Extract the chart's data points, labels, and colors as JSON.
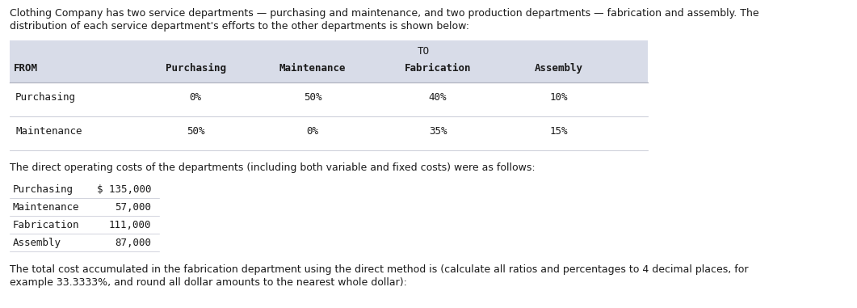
{
  "intro_text_line1": "Clothing Company has two service departments — purchasing and maintenance, and two production departments — fabrication and assembly. The",
  "intro_text_line2": "distribution of each service department's efforts to the other departments is shown below:",
  "table_header_to": "TO",
  "table_col_headers": [
    "FROM",
    "Purchasing",
    "Maintenance",
    "Fabrication",
    "Assembly"
  ],
  "table_rows": [
    [
      "Purchasing",
      "0%",
      "50%",
      "40%",
      "10%"
    ],
    [
      "Maintenance",
      "50%",
      "0%",
      "35%",
      "15%"
    ]
  ],
  "costs_intro": "The direct operating costs of the departments (including both variable and fixed costs) were as follows:",
  "costs_rows": [
    [
      "Purchasing",
      "$ 135,000"
    ],
    [
      "Maintenance",
      "57,000"
    ],
    [
      "Fabrication",
      "111,000"
    ],
    [
      "Assembly",
      "87,000"
    ]
  ],
  "footer_line1": "The total cost accumulated in the fabrication department using the direct method is (calculate all ratios and percentages to 4 decimal places, for",
  "footer_line2": "example 33.3333%, and round all dollar amounts to the nearest whole dollar):",
  "table_bg": "#d8dce8",
  "row_bg_even": "#ffffff",
  "fig_bg": "#ffffff",
  "text_color": "#1a1a1a",
  "mono_font": "DejaVu Sans Mono",
  "normal_font": "DejaVu Sans",
  "font_size": 9.0,
  "header_font_size": 9.0
}
